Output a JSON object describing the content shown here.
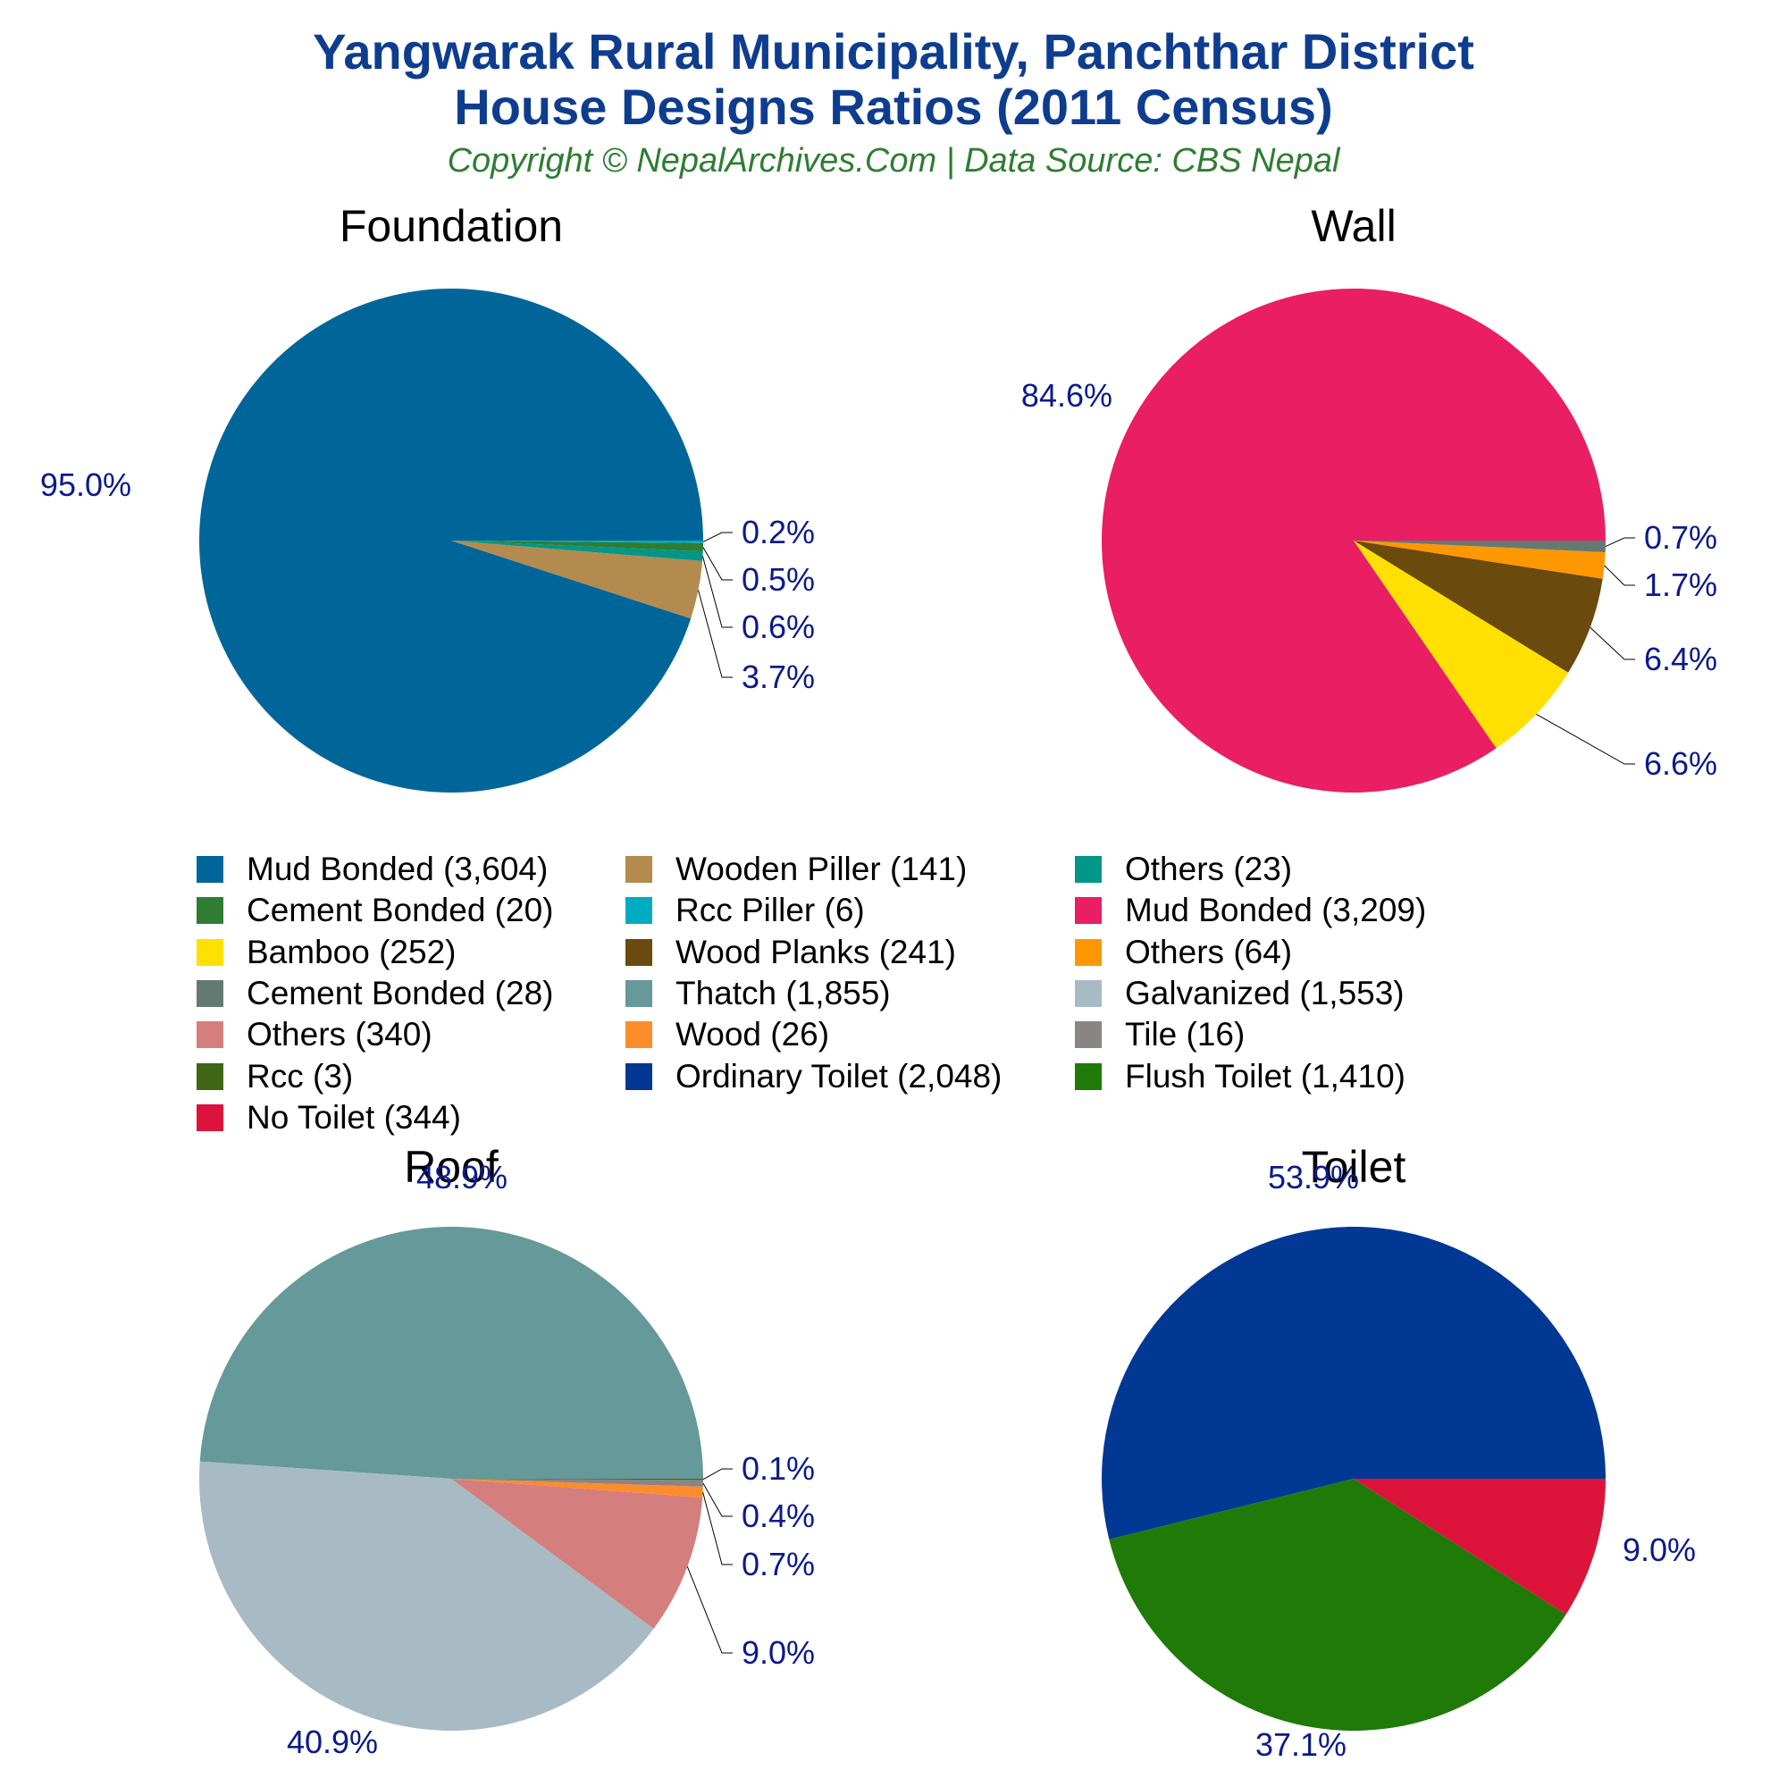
{
  "title_line1": "Yangwarak Rural Municipality, Panchthar District",
  "title_line2": "House Designs Ratios (2011 Census)",
  "subtitle": "Copyright © NepalArchives.Com | Data Source: CBS Nepal",
  "chart_data": [
    {
      "type": "pie",
      "title": "Foundation",
      "slices": [
        {
          "label": "Mud Bonded",
          "value": 3604,
          "pct_label": "95.0%",
          "color": "#006699"
        },
        {
          "label": "Wooden Piller",
          "value": 141,
          "pct_label": "3.7%",
          "color": "#b38b4f"
        },
        {
          "label": "Others",
          "value": 23,
          "pct_label": "0.6%",
          "color": "#009688"
        },
        {
          "label": "Cement Bonded",
          "value": 20,
          "pct_label": "0.5%",
          "color": "#2e7d32"
        },
        {
          "label": "Rcc Piller",
          "value": 6,
          "pct_label": "0.2%",
          "color": "#00acc1"
        }
      ]
    },
    {
      "type": "pie",
      "title": "Wall",
      "slices": [
        {
          "label": "Mud Bonded",
          "value": 3209,
          "pct_label": "84.6%",
          "color": "#e91e63"
        },
        {
          "label": "Bamboo",
          "value": 252,
          "pct_label": "6.6%",
          "color": "#ffe000"
        },
        {
          "label": "Wood Planks",
          "value": 241,
          "pct_label": "6.4%",
          "color": "#6b4a0e"
        },
        {
          "label": "Others",
          "value": 64,
          "pct_label": "1.7%",
          "color": "#ff9800"
        },
        {
          "label": "Cement Bonded",
          "value": 28,
          "pct_label": "0.7%",
          "color": "#637a72"
        }
      ]
    },
    {
      "type": "pie",
      "title": "Roof",
      "slices": [
        {
          "label": "Thatch",
          "value": 1855,
          "pct_label": "48.9%",
          "color": "#669999"
        },
        {
          "label": "Galvanized",
          "value": 1553,
          "pct_label": "40.9%",
          "color": "#a8bbc4"
        },
        {
          "label": "Others",
          "value": 340,
          "pct_label": "9.0%",
          "color": "#d47f7d"
        },
        {
          "label": "Wood",
          "value": 26,
          "pct_label": "0.7%",
          "color": "#ff8c2a"
        },
        {
          "label": "Tile",
          "value": 16,
          "pct_label": "0.4%",
          "color": "#8a8584"
        },
        {
          "label": "Rcc",
          "value": 3,
          "pct_label": "0.1%",
          "color": "#3f6614"
        }
      ]
    },
    {
      "type": "pie",
      "title": "Toilet",
      "slices": [
        {
          "label": "Ordinary Toilet",
          "value": 2048,
          "pct_label": "53.9%",
          "color": "#003893"
        },
        {
          "label": "Flush Toilet",
          "value": 1410,
          "pct_label": "37.1%",
          "color": "#1f7a08"
        },
        {
          "label": "No Toilet",
          "value": 344,
          "pct_label": "9.0%",
          "color": "#dc143c"
        }
      ]
    }
  ],
  "legend": [
    {
      "text": "Mud Bonded (3,604)",
      "color": "#006699"
    },
    {
      "text": "Cement Bonded (20)",
      "color": "#2e7d32"
    },
    {
      "text": "Bamboo (252)",
      "color": "#ffe000"
    },
    {
      "text": "Cement Bonded (28)",
      "color": "#637a72"
    },
    {
      "text": "Others (340)",
      "color": "#d47f7d"
    },
    {
      "text": "Rcc (3)",
      "color": "#3f6614"
    },
    {
      "text": "No Toilet (344)",
      "color": "#dc143c"
    },
    {
      "text": "Wooden Piller (141)",
      "color": "#b38b4f"
    },
    {
      "text": "Rcc Piller (6)",
      "color": "#00acc1"
    },
    {
      "text": "Wood Planks (241)",
      "color": "#6b4a0e"
    },
    {
      "text": "Thatch (1,855)",
      "color": "#669999"
    },
    {
      "text": "Wood (26)",
      "color": "#ff8c2a"
    },
    {
      "text": "Ordinary Toilet (2,048)",
      "color": "#003893"
    },
    {
      "text": "Others (23)",
      "color": "#009688"
    },
    {
      "text": "Mud Bonded (3,209)",
      "color": "#e91e63"
    },
    {
      "text": "Others (64)",
      "color": "#ff9800"
    },
    {
      "text": "Galvanized (1,553)",
      "color": "#a8bbc4"
    },
    {
      "text": "Tile (16)",
      "color": "#8a8584"
    },
    {
      "text": "Flush Toilet (1,410)",
      "color": "#1f7a08"
    }
  ],
  "label_color": "#0a1a8c"
}
